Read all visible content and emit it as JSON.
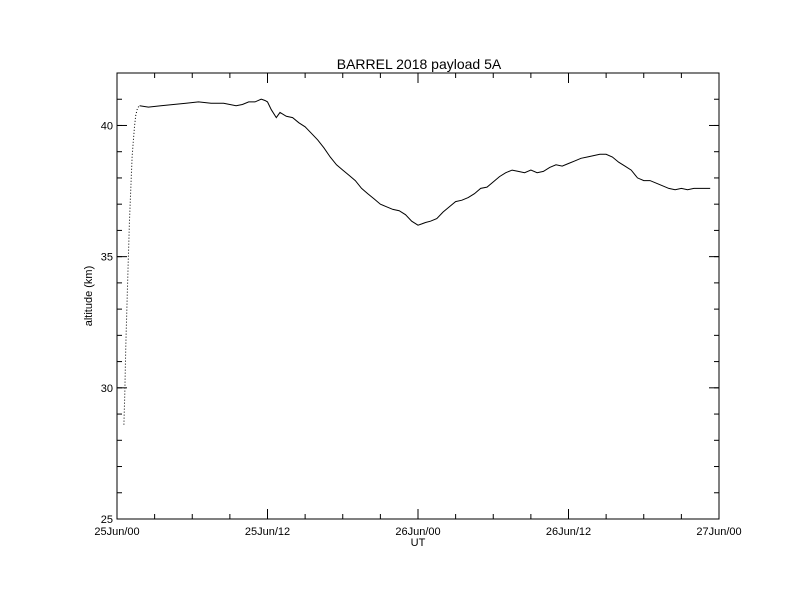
{
  "chart_data": {
    "type": "line",
    "title": "BARREL 2018 payload 5A",
    "xlabel": "UT",
    "ylabel": "altitude (km)",
    "x_unit": "hours",
    "xlim": [
      0,
      48
    ],
    "ylim": [
      25,
      42
    ],
    "x_ticks": [
      {
        "value": 0,
        "label": "25Jun/00"
      },
      {
        "value": 12,
        "label": "25Jun/12"
      },
      {
        "value": 24,
        "label": "26Jun/00"
      },
      {
        "value": 36,
        "label": "26Jun/12"
      },
      {
        "value": 48,
        "label": "27Jun/00"
      }
    ],
    "x_minor_step": 3,
    "y_ticks": [
      {
        "value": 25,
        "label": "25"
      },
      {
        "value": 30,
        "label": "30"
      },
      {
        "value": 35,
        "label": "35"
      },
      {
        "value": 40,
        "label": "40"
      }
    ],
    "y_minor_step": 1,
    "grid": false,
    "series": [
      {
        "name": "",
        "style": "line",
        "color": "#000000",
        "x": [
          0.55,
          0.62,
          0.7,
          0.8,
          0.9,
          1.0,
          1.1,
          1.2,
          1.3,
          1.4,
          1.5,
          1.6,
          1.7,
          1.8
        ],
        "y": [
          28.6,
          29.8,
          31.6,
          33.2,
          34.9,
          36.4,
          37.6,
          38.8,
          39.4,
          40.0,
          40.4,
          40.6,
          40.7,
          40.75
        ]
      },
      {
        "name": "",
        "style": "line",
        "color": "#000000",
        "x": [
          1.8,
          2.5,
          3.5,
          4.5,
          5.5,
          6.5,
          7.5,
          8.5,
          9.5,
          10.0,
          10.5,
          11.0,
          11.5,
          11.8,
          12.0,
          12.3,
          12.7,
          13.0,
          13.5,
          14.0,
          14.5,
          15.0,
          15.5,
          16.0,
          16.5,
          17.0,
          17.5,
          18.0,
          18.5,
          19.0,
          19.5,
          20.0,
          20.5,
          21.0,
          21.5,
          22.0,
          22.5,
          23.0,
          23.5,
          24.0,
          24.3,
          24.6,
          25.0,
          25.5,
          26.0,
          26.5,
          27.0,
          27.5,
          28.0,
          28.5,
          29.0,
          29.5,
          30.0,
          30.5,
          31.0,
          31.5,
          32.0,
          32.5,
          33.0,
          33.5,
          34.0,
          34.5,
          35.0,
          35.5,
          36.0,
          36.5,
          37.0,
          37.5,
          38.0,
          38.5,
          39.0,
          39.5,
          40.0,
          40.5,
          41.0,
          41.5,
          42.0,
          42.5,
          43.0,
          43.5,
          44.0,
          44.5,
          45.0,
          45.5,
          46.0,
          46.5,
          47.0,
          47.3
        ],
        "y": [
          40.75,
          40.7,
          40.75,
          40.8,
          40.85,
          40.9,
          40.85,
          40.85,
          40.75,
          40.8,
          40.9,
          40.9,
          41.0,
          40.95,
          40.9,
          40.6,
          40.3,
          40.5,
          40.35,
          40.3,
          40.1,
          39.95,
          39.7,
          39.45,
          39.15,
          38.8,
          38.5,
          38.3,
          38.1,
          37.9,
          37.6,
          37.4,
          37.2,
          37.0,
          36.9,
          36.8,
          36.75,
          36.6,
          36.35,
          36.2,
          36.25,
          36.3,
          36.35,
          36.45,
          36.7,
          36.9,
          37.1,
          37.15,
          37.25,
          37.4,
          37.6,
          37.65,
          37.85,
          38.05,
          38.2,
          38.3,
          38.25,
          38.2,
          38.3,
          38.2,
          38.25,
          38.4,
          38.5,
          38.45,
          38.55,
          38.65,
          38.75,
          38.8,
          38.85,
          38.9,
          38.9,
          38.8,
          38.6,
          38.45,
          38.3,
          38.0,
          37.9,
          37.9,
          37.8,
          37.7,
          37.6,
          37.55,
          37.6,
          37.55,
          37.6,
          37.6,
          37.6,
          37.6
        ]
      }
    ]
  }
}
